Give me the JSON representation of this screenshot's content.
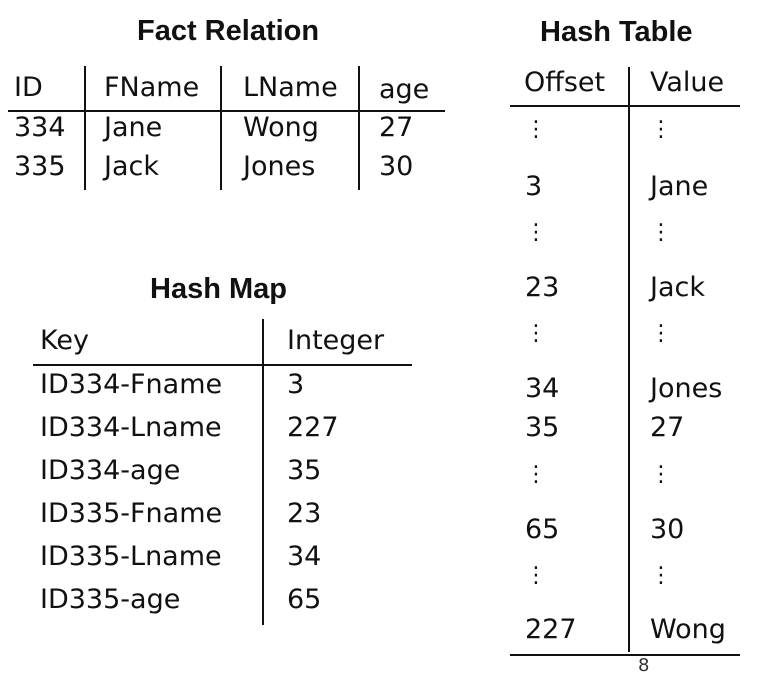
{
  "fact_relation": {
    "title": "Fact Relation",
    "headers": [
      "ID",
      "FName",
      "LName",
      "age"
    ],
    "rows": [
      [
        "334",
        "Jane",
        "Wong",
        "27"
      ],
      [
        "335",
        "Jack",
        "Jones",
        "30"
      ]
    ]
  },
  "hash_map": {
    "title": "Hash Map",
    "headers": [
      "Key",
      "Integer"
    ],
    "rows": [
      [
        "ID334-Fname",
        "3"
      ],
      [
        "ID334-Lname",
        "227"
      ],
      [
        "ID334-age",
        "35"
      ],
      [
        "ID335-Fname",
        "23"
      ],
      [
        "ID335-Lname",
        "34"
      ],
      [
        "ID335-age",
        "65"
      ]
    ]
  },
  "hash_table": {
    "title": "Hash Table",
    "headers": [
      "Offset",
      "Value"
    ],
    "rows": [
      [
        "3",
        "Jane"
      ],
      [
        "23",
        "Jack"
      ],
      [
        "34",
        "Jones"
      ],
      [
        "35",
        "27"
      ],
      [
        "65",
        "30"
      ],
      [
        "227",
        "Wong"
      ]
    ],
    "ellipsis": "⋮"
  },
  "page_number": "8"
}
